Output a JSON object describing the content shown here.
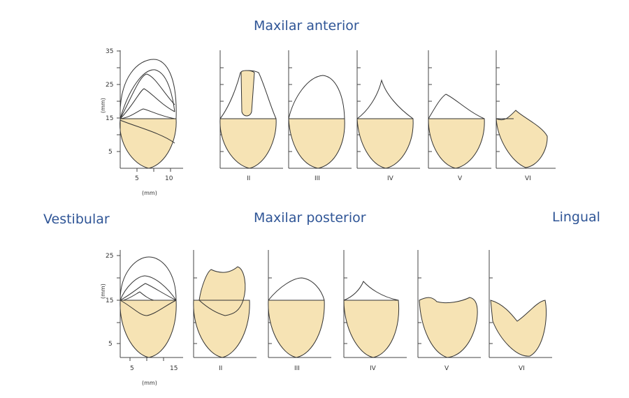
{
  "titles": {
    "anterior": "Maxilar anterior",
    "posterior": "Maxilar posterior",
    "vestibular": "Vestibular",
    "lingual": "Lingual"
  },
  "anterior_axis": {
    "y_ticks": [
      "35",
      "25",
      "15",
      "5"
    ],
    "x_ticks": [
      "5",
      "10"
    ],
    "unit_y": "(mm)",
    "unit_x": "(mm)"
  },
  "posterior_axis": {
    "y_ticks": [
      "25",
      "15",
      "5"
    ],
    "x_ticks": [
      "5",
      "15"
    ],
    "unit_y": "(mm)",
    "unit_x": "(mm)"
  },
  "class_labels": [
    "II",
    "III",
    "IV",
    "V",
    "VI"
  ],
  "colors": {
    "bone_fill": "#f6e3b4",
    "title": "#2f5596",
    "line": "#333333"
  }
}
